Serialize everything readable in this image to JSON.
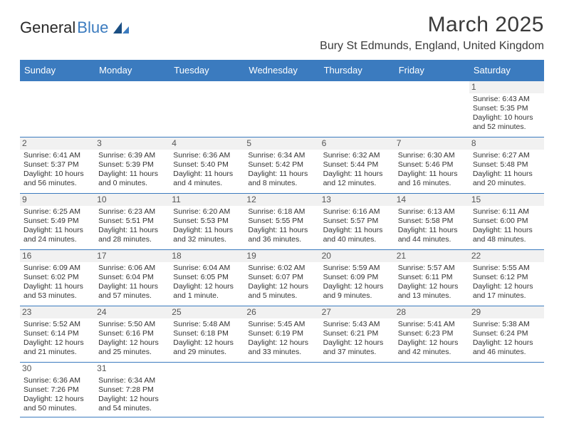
{
  "logo": {
    "textA": "General",
    "textB": "Blue"
  },
  "title": "March 2025",
  "subtitle": "Bury St Edmunds, England, United Kingdom",
  "colors": {
    "brand": "#3b7bbf",
    "text": "#333333",
    "shade": "#f1f1f1"
  },
  "dayHeaders": [
    "Sunday",
    "Monday",
    "Tuesday",
    "Wednesday",
    "Thursday",
    "Friday",
    "Saturday"
  ],
  "weeks": [
    [
      null,
      null,
      null,
      null,
      null,
      null,
      {
        "n": "1",
        "sr": "Sunrise: 6:43 AM",
        "ss": "Sunset: 5:35 PM",
        "dl1": "Daylight: 10 hours",
        "dl2": "and 52 minutes."
      }
    ],
    [
      {
        "n": "2",
        "sr": "Sunrise: 6:41 AM",
        "ss": "Sunset: 5:37 PM",
        "dl1": "Daylight: 10 hours",
        "dl2": "and 56 minutes."
      },
      {
        "n": "3",
        "sr": "Sunrise: 6:39 AM",
        "ss": "Sunset: 5:39 PM",
        "dl1": "Daylight: 11 hours",
        "dl2": "and 0 minutes."
      },
      {
        "n": "4",
        "sr": "Sunrise: 6:36 AM",
        "ss": "Sunset: 5:40 PM",
        "dl1": "Daylight: 11 hours",
        "dl2": "and 4 minutes."
      },
      {
        "n": "5",
        "sr": "Sunrise: 6:34 AM",
        "ss": "Sunset: 5:42 PM",
        "dl1": "Daylight: 11 hours",
        "dl2": "and 8 minutes."
      },
      {
        "n": "6",
        "sr": "Sunrise: 6:32 AM",
        "ss": "Sunset: 5:44 PM",
        "dl1": "Daylight: 11 hours",
        "dl2": "and 12 minutes."
      },
      {
        "n": "7",
        "sr": "Sunrise: 6:30 AM",
        "ss": "Sunset: 5:46 PM",
        "dl1": "Daylight: 11 hours",
        "dl2": "and 16 minutes."
      },
      {
        "n": "8",
        "sr": "Sunrise: 6:27 AM",
        "ss": "Sunset: 5:48 PM",
        "dl1": "Daylight: 11 hours",
        "dl2": "and 20 minutes."
      }
    ],
    [
      {
        "n": "9",
        "sr": "Sunrise: 6:25 AM",
        "ss": "Sunset: 5:49 PM",
        "dl1": "Daylight: 11 hours",
        "dl2": "and 24 minutes."
      },
      {
        "n": "10",
        "sr": "Sunrise: 6:23 AM",
        "ss": "Sunset: 5:51 PM",
        "dl1": "Daylight: 11 hours",
        "dl2": "and 28 minutes."
      },
      {
        "n": "11",
        "sr": "Sunrise: 6:20 AM",
        "ss": "Sunset: 5:53 PM",
        "dl1": "Daylight: 11 hours",
        "dl2": "and 32 minutes."
      },
      {
        "n": "12",
        "sr": "Sunrise: 6:18 AM",
        "ss": "Sunset: 5:55 PM",
        "dl1": "Daylight: 11 hours",
        "dl2": "and 36 minutes."
      },
      {
        "n": "13",
        "sr": "Sunrise: 6:16 AM",
        "ss": "Sunset: 5:57 PM",
        "dl1": "Daylight: 11 hours",
        "dl2": "and 40 minutes."
      },
      {
        "n": "14",
        "sr": "Sunrise: 6:13 AM",
        "ss": "Sunset: 5:58 PM",
        "dl1": "Daylight: 11 hours",
        "dl2": "and 44 minutes."
      },
      {
        "n": "15",
        "sr": "Sunrise: 6:11 AM",
        "ss": "Sunset: 6:00 PM",
        "dl1": "Daylight: 11 hours",
        "dl2": "and 48 minutes."
      }
    ],
    [
      {
        "n": "16",
        "sr": "Sunrise: 6:09 AM",
        "ss": "Sunset: 6:02 PM",
        "dl1": "Daylight: 11 hours",
        "dl2": "and 53 minutes."
      },
      {
        "n": "17",
        "sr": "Sunrise: 6:06 AM",
        "ss": "Sunset: 6:04 PM",
        "dl1": "Daylight: 11 hours",
        "dl2": "and 57 minutes."
      },
      {
        "n": "18",
        "sr": "Sunrise: 6:04 AM",
        "ss": "Sunset: 6:05 PM",
        "dl1": "Daylight: 12 hours",
        "dl2": "and 1 minute."
      },
      {
        "n": "19",
        "sr": "Sunrise: 6:02 AM",
        "ss": "Sunset: 6:07 PM",
        "dl1": "Daylight: 12 hours",
        "dl2": "and 5 minutes."
      },
      {
        "n": "20",
        "sr": "Sunrise: 5:59 AM",
        "ss": "Sunset: 6:09 PM",
        "dl1": "Daylight: 12 hours",
        "dl2": "and 9 minutes."
      },
      {
        "n": "21",
        "sr": "Sunrise: 5:57 AM",
        "ss": "Sunset: 6:11 PM",
        "dl1": "Daylight: 12 hours",
        "dl2": "and 13 minutes."
      },
      {
        "n": "22",
        "sr": "Sunrise: 5:55 AM",
        "ss": "Sunset: 6:12 PM",
        "dl1": "Daylight: 12 hours",
        "dl2": "and 17 minutes."
      }
    ],
    [
      {
        "n": "23",
        "sr": "Sunrise: 5:52 AM",
        "ss": "Sunset: 6:14 PM",
        "dl1": "Daylight: 12 hours",
        "dl2": "and 21 minutes."
      },
      {
        "n": "24",
        "sr": "Sunrise: 5:50 AM",
        "ss": "Sunset: 6:16 PM",
        "dl1": "Daylight: 12 hours",
        "dl2": "and 25 minutes."
      },
      {
        "n": "25",
        "sr": "Sunrise: 5:48 AM",
        "ss": "Sunset: 6:18 PM",
        "dl1": "Daylight: 12 hours",
        "dl2": "and 29 minutes."
      },
      {
        "n": "26",
        "sr": "Sunrise: 5:45 AM",
        "ss": "Sunset: 6:19 PM",
        "dl1": "Daylight: 12 hours",
        "dl2": "and 33 minutes."
      },
      {
        "n": "27",
        "sr": "Sunrise: 5:43 AM",
        "ss": "Sunset: 6:21 PM",
        "dl1": "Daylight: 12 hours",
        "dl2": "and 37 minutes."
      },
      {
        "n": "28",
        "sr": "Sunrise: 5:41 AM",
        "ss": "Sunset: 6:23 PM",
        "dl1": "Daylight: 12 hours",
        "dl2": "and 42 minutes."
      },
      {
        "n": "29",
        "sr": "Sunrise: 5:38 AM",
        "ss": "Sunset: 6:24 PM",
        "dl1": "Daylight: 12 hours",
        "dl2": "and 46 minutes."
      }
    ],
    [
      {
        "n": "30",
        "sr": "Sunrise: 6:36 AM",
        "ss": "Sunset: 7:26 PM",
        "dl1": "Daylight: 12 hours",
        "dl2": "and 50 minutes."
      },
      {
        "n": "31",
        "sr": "Sunrise: 6:34 AM",
        "ss": "Sunset: 7:28 PM",
        "dl1": "Daylight: 12 hours",
        "dl2": "and 54 minutes."
      },
      null,
      null,
      null,
      null,
      null
    ]
  ]
}
